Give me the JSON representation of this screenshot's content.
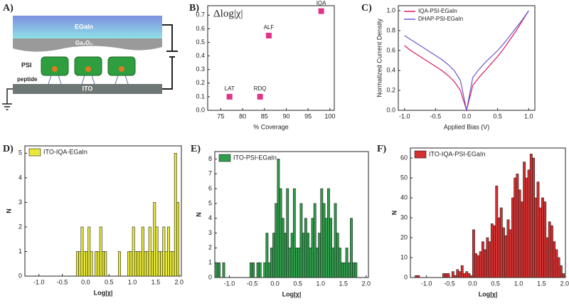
{
  "diagram": {
    "label": "A)",
    "egain": "EGaIn",
    "oxide": "Ga₂O₃",
    "psi": "PSI",
    "peptide": "peptide",
    "ito": "ITO"
  },
  "chart_data": [
    {
      "type": "scatter",
      "panel": "B)",
      "title": "Δlog|χ|",
      "xlabel": "% Coverage",
      "x": [
        77,
        84,
        86,
        98
      ],
      "values": [
        0.1,
        0.1,
        0.55,
        0.73
      ],
      "labels": [
        "LAT",
        "RDQ",
        "ALF",
        "IQA"
      ],
      "color": "#e0338a",
      "xlim": [
        72,
        101
      ],
      "xticks": [
        75,
        80,
        85,
        90,
        95,
        100
      ],
      "ylim": [
        0,
        0.77
      ],
      "yticks": [
        {
          "value": 0,
          "label": "0.0"
        },
        0.1,
        0.2,
        0.3,
        0.4,
        0.5,
        0.6,
        0.7
      ]
    },
    {
      "type": "line",
      "panel": "C)",
      "xlabel": "Applied Bias (V)",
      "ylabel": "Normalized Current Density",
      "x": [
        -1,
        -0.9,
        -0.8,
        -0.7,
        -0.6,
        -0.5,
        -0.4,
        -0.3,
        -0.2,
        -0.1,
        0,
        0.1,
        0.2,
        0.3,
        0.4,
        0.5,
        0.6,
        0.7,
        0.8,
        0.9,
        1
      ],
      "series": [
        {
          "name": "IQA-PSI-EGaIn",
          "color": "#d81b60",
          "values": [
            0.65,
            0.6,
            0.56,
            0.52,
            0.48,
            0.44,
            0.4,
            0.35,
            0.29,
            0.2,
            0,
            0.25,
            0.33,
            0.4,
            0.47,
            0.54,
            0.62,
            0.71,
            0.8,
            0.9,
            1
          ]
        },
        {
          "name": "DHAP-PSI-EGaIn",
          "color": "#6a5acd",
          "values": [
            0.75,
            0.71,
            0.67,
            0.63,
            0.59,
            0.55,
            0.51,
            0.46,
            0.4,
            0.3,
            0,
            0.33,
            0.41,
            0.48,
            0.54,
            0.6,
            0.67,
            0.75,
            0.83,
            0.91,
            1
          ]
        }
      ],
      "xlim": [
        -1.1,
        1.1
      ],
      "xticks": [
        {
          "value": -1,
          "label": "-1.0"
        },
        -0.5,
        {
          "value": 0,
          "label": "0.0"
        },
        0.5,
        {
          "value": 1,
          "label": "1.0"
        }
      ],
      "ylim": [
        0,
        1.05
      ],
      "yticks": [
        {
          "value": 0,
          "label": "0.0"
        },
        0.2,
        0.4,
        0.6,
        0.8,
        {
          "value": 1,
          "label": "1.0"
        }
      ]
    },
    {
      "type": "histogram",
      "panel": "D)",
      "xlabel": "Log|χ|",
      "ylabel": "N",
      "bins": [
        -0.2,
        -0.15,
        -0.1,
        -0.05,
        0,
        0.05,
        0.1,
        0.15,
        0.2,
        0.25,
        0.3,
        0.35,
        0.4,
        0.45,
        0.5,
        0.55,
        0.6,
        0.65,
        0.7,
        0.75,
        0.8,
        0.85,
        0.9,
        0.95,
        1,
        1.05,
        1.1,
        1.15,
        1.2,
        1.25,
        1.3,
        1.35,
        1.4,
        1.45,
        1.5,
        1.55,
        1.6,
        1.65,
        1.7,
        1.75,
        1.8,
        1.85,
        1.9,
        1.95,
        2
      ],
      "series": [
        {
          "name": "ITO-IQA-EGaIn",
          "color": "#e8e83a",
          "values": [
            1,
            1,
            2,
            1,
            1,
            2,
            1,
            0,
            1,
            1,
            2,
            1,
            1,
            0,
            0,
            0,
            0,
            0,
            1,
            0,
            0,
            0,
            1,
            1,
            2,
            1,
            1,
            1,
            2,
            1,
            1,
            2,
            1,
            3,
            2,
            1,
            1,
            2,
            1,
            2,
            1,
            1,
            5,
            3
          ]
        }
      ],
      "xlim": [
        -1.3,
        2.05
      ],
      "xticks": [
        {
          "value": -1,
          "label": "-1.0"
        },
        -0.5,
        {
          "value": 0,
          "label": "0.0"
        },
        0.5,
        {
          "value": 1,
          "label": "1.0"
        },
        1.5,
        {
          "value": 2,
          "label": "2.0"
        }
      ],
      "ylim": [
        0,
        5.3
      ],
      "yticks": [
        0,
        1,
        2,
        3,
        4,
        5
      ]
    },
    {
      "type": "histogram",
      "panel": "E)",
      "xlabel": "Log|χ|",
      "ylabel": "N",
      "bins": [
        -1.3,
        -1.25,
        -1.2,
        -1.15,
        -1.1,
        -1.05,
        -1,
        -0.95,
        -0.9,
        -0.85,
        -0.8,
        -0.75,
        -0.7,
        -0.65,
        -0.6,
        -0.55,
        -0.5,
        -0.45,
        -0.4,
        -0.35,
        -0.3,
        -0.25,
        -0.2,
        -0.15,
        -0.1,
        -0.05,
        0,
        0.05,
        0.1,
        0.15,
        0.2,
        0.25,
        0.3,
        0.35,
        0.4,
        0.45,
        0.5,
        0.55,
        0.6,
        0.65,
        0.7,
        0.75,
        0.8,
        0.85,
        0.9,
        0.95,
        1,
        1.05,
        1.1,
        1.15,
        1.2,
        1.25,
        1.3,
        1.35,
        1.4,
        1.45,
        1.5,
        1.55,
        1.6,
        1.65,
        1.7,
        1.75,
        1.8
      ],
      "series": [
        {
          "name": "ITO-PSI-EGaIn",
          "color": "#2e9e4a",
          "values": [
            1,
            1,
            0,
            1,
            0,
            0,
            0,
            0,
            0,
            0,
            0,
            0,
            0,
            0,
            0,
            1,
            1,
            0,
            1,
            1,
            0,
            1,
            3,
            1,
            2,
            3,
            5,
            8,
            6,
            4,
            3,
            6,
            2,
            3,
            6,
            2,
            2,
            5,
            3,
            4,
            3,
            2,
            4,
            5,
            2,
            3,
            6,
            5,
            4,
            6,
            4,
            2,
            5,
            3,
            2,
            1,
            1,
            2,
            1,
            4,
            1,
            1
          ]
        }
      ],
      "xlim": [
        -1.32,
        2.05
      ],
      "xticks": [
        {
          "value": -1,
          "label": "-1.0"
        },
        -0.5,
        {
          "value": 0,
          "label": "0.0"
        },
        0.5,
        {
          "value": 1,
          "label": "1.0"
        },
        1.5,
        {
          "value": 2,
          "label": "2.0"
        }
      ],
      "ylim": [
        0,
        8.5
      ],
      "yticks": [
        0,
        1,
        2,
        3,
        4,
        5,
        6,
        7,
        8
      ]
    },
    {
      "type": "histogram",
      "panel": "F)",
      "xlabel": "Log|χ|",
      "ylabel": "N",
      "bins": [
        -1.3,
        -1.25,
        -1.2,
        -1.15,
        -1.1,
        -1.05,
        -1,
        -0.95,
        -0.9,
        -0.85,
        -0.8,
        -0.75,
        -0.7,
        -0.65,
        -0.6,
        -0.55,
        -0.5,
        -0.45,
        -0.4,
        -0.35,
        -0.3,
        -0.25,
        -0.2,
        -0.15,
        -0.1,
        -0.05,
        0,
        0.05,
        0.1,
        0.15,
        0.2,
        0.25,
        0.3,
        0.35,
        0.4,
        0.45,
        0.5,
        0.55,
        0.6,
        0.65,
        0.7,
        0.75,
        0.8,
        0.85,
        0.9,
        0.95,
        1,
        1.05,
        1.1,
        1.15,
        1.2,
        1.25,
        1.3,
        1.35,
        1.4,
        1.45,
        1.5,
        1.55,
        1.6,
        1.65,
        1.7,
        1.75,
        1.8,
        1.85,
        1.9,
        1.95,
        2
      ],
      "series": [
        {
          "name": "ITO-IQA-PSI-EGaIn",
          "color": "#d62f2f",
          "values": [
            0,
            1,
            1,
            0,
            0,
            0,
            0,
            0,
            0,
            0,
            0,
            0,
            0,
            2,
            2,
            2,
            0,
            3,
            1,
            4,
            3,
            6,
            2,
            3,
            2,
            1,
            24,
            12,
            11,
            13,
            18,
            14,
            20,
            18,
            27,
            26,
            46,
            30,
            35,
            25,
            21,
            29,
            24,
            40,
            50,
            52,
            44,
            38,
            58,
            50,
            54,
            62,
            60,
            40,
            48,
            35,
            40,
            38,
            20,
            28,
            26,
            18,
            14,
            10,
            6,
            2
          ]
        }
      ],
      "xlim": [
        -1.35,
        2.02
      ],
      "xticks": [
        {
          "value": -1,
          "label": "-1.0"
        },
        -0.5,
        {
          "value": 0,
          "label": "0.0"
        },
        0.5,
        {
          "value": 1,
          "label": "1.0"
        },
        1.5,
        {
          "value": 2,
          "label": "2.0"
        }
      ],
      "ylim": [
        0,
        65
      ],
      "yticks": [
        0,
        10,
        20,
        30,
        40,
        50,
        60
      ]
    }
  ]
}
